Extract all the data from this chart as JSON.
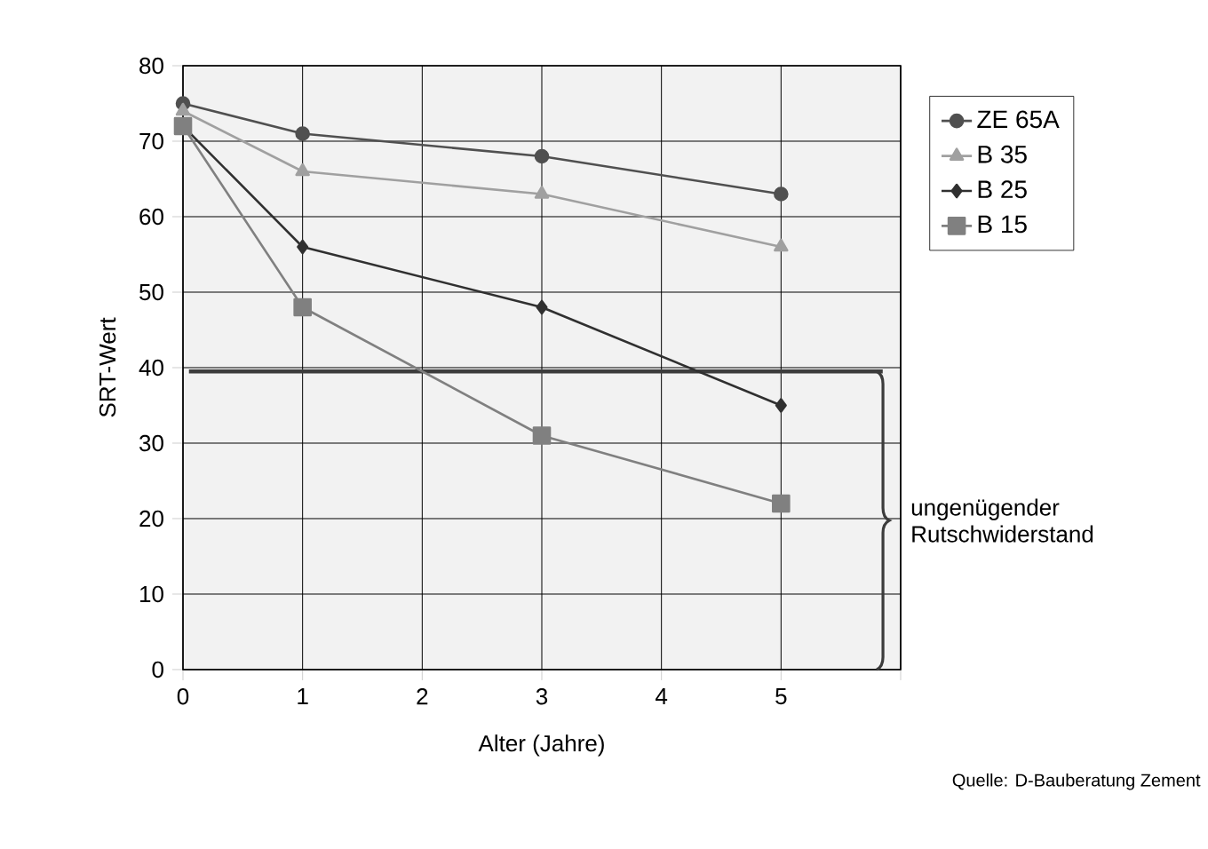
{
  "chart_data": {
    "type": "line",
    "xlabel": "Alter (Jahre)",
    "ylabel": "SRT-Wert",
    "xlim": [
      0,
      6
    ],
    "xticks": [
      0,
      1,
      2,
      3,
      4,
      5,
      {
        "value": 6,
        "label": null
      }
    ],
    "ylim": [
      0,
      80
    ],
    "yticks": [
      0,
      10,
      20,
      30,
      40,
      50,
      60,
      70,
      80
    ],
    "grid": true,
    "legend": "right",
    "series": [
      {
        "name": "ZE 65A",
        "color": "#505050",
        "marker": "circle",
        "x": [
          0,
          1,
          3,
          5
        ],
        "values": [
          75,
          71,
          68,
          63
        ]
      },
      {
        "name": "B 35",
        "color": "#a0a0a0",
        "marker": "triangle",
        "x": [
          0,
          1,
          3,
          5
        ],
        "values": [
          74,
          66,
          63,
          56
        ]
      },
      {
        "name": "B 25",
        "color": "#303030",
        "marker": "diamond",
        "x": [
          0,
          1,
          3,
          5
        ],
        "values": [
          72,
          56,
          48,
          35
        ]
      },
      {
        "name": "B 15",
        "color": "#808080",
        "marker": "square",
        "x": [
          0,
          1,
          3,
          5
        ],
        "values": [
          72,
          48,
          31,
          22
        ]
      }
    ],
    "ref_lines": [
      {
        "axis": "y",
        "value": 39.5,
        "color": "#3c3c3c"
      }
    ],
    "annotations": [
      "ungenügender Rutschwiderstand",
      "Quelle:  D-Bauberatung Zement"
    ]
  }
}
